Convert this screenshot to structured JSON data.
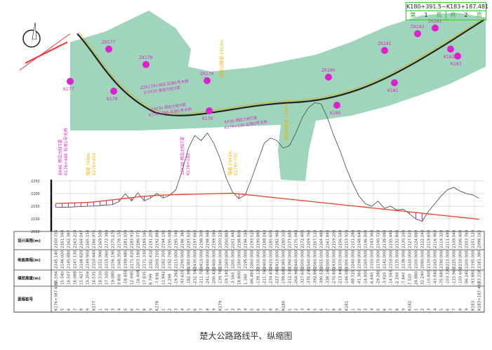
{
  "title_block": {
    "range": "K180+391.5~K183+187.481",
    "page_label_pre": "第",
    "page_current": "1",
    "page_label_post": "页",
    "total_label_pre": "共",
    "total_pages": "2",
    "total_label_post": "页"
  },
  "caption": "楚大公路路线平、纵缩图",
  "colors": {
    "terrain": "#9fd5ba",
    "design_line": "#e8422a",
    "ground_line": "#444444",
    "marker": "#e020d0",
    "tunnel_label": "#f0b000",
    "fill_hatch": "#e020d0",
    "border": "#33cc33"
  },
  "map": {
    "stake_labels": [
      "ZK177",
      "K177",
      "ZK178",
      "K178",
      "ZK179",
      "K179",
      "ZK180",
      "K180",
      "ZK181",
      "K181",
      "ZK182",
      "K182",
      "ZK183",
      "K183"
    ],
    "bridge_notes": [
      "ZZK178+465 石洞1号大桥",
      "2-5X30 预应力砼T梁",
      "13X30 预应力砼T梁",
      "K178+285 石洞1号大桥",
      "6X30 预应力砼T梁",
      "K179+130 石洞3号大桥"
    ],
    "tunnel_notes": [
      "蔡家山隧道 2312m",
      "蔡家山隧道 2342m"
    ]
  },
  "profile": {
    "y_ticks": [
      2250,
      2200,
      2150,
      2100,
      2050
    ],
    "annotations": [
      "8X40 预应力砼T梁",
      "K176+486 石坝1号大桥",
      "隧道 769m",
      "K176+954",
      "12X30 预应力砼T梁",
      "K178+285",
      "隧道 2343m",
      "K179+720"
    ]
  },
  "table": {
    "row_labels": [
      "设计高程(m)",
      "地面高程(m)",
      "填挖高度(m)",
      "里程桩号"
    ],
    "stations": [
      "K176+387.694",
      "5",
      "6",
      "7",
      "8",
      "9",
      "K177",
      "1",
      "2",
      "3",
      "4",
      "5",
      "6",
      "7",
      "8",
      "9",
      "K178",
      "1",
      "2",
      "3",
      "4",
      "5",
      "6",
      "7",
      "8",
      "9",
      "K179",
      "1",
      "2",
      "3",
      "4",
      "5",
      "6",
      "7",
      "8",
      "9",
      "K180",
      "1",
      "2",
      "3",
      "4",
      "5",
      "6",
      "7",
      "8",
      "9",
      "K181",
      "1",
      "2",
      "3",
      "4",
      "5",
      "6",
      "7",
      "8",
      "9",
      "K182",
      "1",
      "2",
      "3",
      "4",
      "5",
      "6",
      "7",
      "8",
      "9",
      "K183",
      "K183+187.481"
    ],
    "design_elevation": [
      2160.734,
      2161.56,
      2162.387,
      2163.218,
      2164.047,
      2165.154,
      2166.975,
      2169.5,
      2172.38,
      2175.27,
      2178.15,
      2181.03,
      2183.91,
      2186.772,
      2189.165,
      2191.209,
      2192.884,
      2194.192,
      2195.088,
      2195.74,
      2196.38,
      2197.02,
      2197.66,
      2198.3,
      2198.94,
      2199.58,
      2200.22,
      2200.86,
      2201.44,
      2198.8,
      2196.16,
      2193.52,
      2190.88,
      2188.24,
      2185.6,
      2182.96,
      2180.32,
      2177.68,
      2175.04,
      2172.4,
      2169.76,
      2167.12,
      2164.48,
      2161.84,
      2159.2,
      2156.56,
      2153.92,
      2151.28,
      2148.64,
      2146.0,
      2143.36,
      2140.72,
      2138.08,
      2135.44,
      2132.8,
      2130.16,
      2127.52,
      2124.88,
      2122.24,
      2119.6,
      2116.96,
      2114.32,
      2111.68,
      2109.04,
      2106.4,
      2103.76,
      2101.12,
      2098.162
    ],
    "ground_elevation": [
      2145.14,
      2146.02,
      2145.88,
      2147.13,
      2148.62,
      2149.95,
      2150.44,
      2152.99,
      2155.06,
      2156.19,
      2168.35,
      2199.48,
      2171.42,
      2203.18,
      2171.33,
      2182.41,
      2200.72,
      2182.35,
      2192.79,
      2215.0,
      2290.0,
      2380.0,
      2430.0,
      2410.0,
      2440.0,
      2400.0,
      2340.0,
      2260.0,
      2205.0,
      2180.0,
      2195.0,
      2260.0,
      2330.0,
      2400.0,
      2420.0,
      2410.0,
      2380.0,
      2390.0,
      2440.0,
      2500.0,
      2540.0,
      2560.0,
      2555.0,
      2500.0,
      2430.0,
      2370.0,
      2300.0,
      2240.0,
      2190.0,
      2160.0,
      2150.0,
      2170.0,
      2142.0,
      2150.0,
      2135.0,
      2138.0,
      2120.0,
      2100.0,
      2090.0,
      2130.0,
      2160.0,
      2190.0,
      2215.0,
      2225.0,
      2210.0,
      2200.0,
      2195.0,
      2181.38
    ],
    "fill_cut": [
      15.594,
      15.54,
      16.507,
      16.088,
      15.427,
      15.204,
      16.535,
      16.51,
      17.32,
      19.08,
      9.8,
      -18.45,
      12.49,
      -16.408,
      17.835,
      8.799,
      -7.836,
      11.842,
      2.298,
      -19.26,
      -93.62,
      -182.98,
      -232.34,
      -211.7,
      -241.06,
      -200.42,
      -139.78,
      -59.14,
      -3.56,
      18.8,
      1.16,
      -66.48,
      -139.12,
      -211.76,
      -234.4,
      -227.04,
      -199.68,
      -212.32,
      -264.96,
      -327.6,
      -370.24,
      -392.88,
      -390.52,
      -338.16,
      -270.8,
      -213.44,
      -146.08,
      -88.72,
      -41.36,
      -14.0,
      -6.64,
      -29.28,
      -3.92,
      -14.56,
      -2.2,
      -7.84,
      7.52,
      24.88,
      32.24,
      -10.4,
      -43.04,
      -75.68,
      -103.32,
      -115.96,
      -103.6,
      -96.24,
      -93.88,
      -83.218
    ]
  }
}
